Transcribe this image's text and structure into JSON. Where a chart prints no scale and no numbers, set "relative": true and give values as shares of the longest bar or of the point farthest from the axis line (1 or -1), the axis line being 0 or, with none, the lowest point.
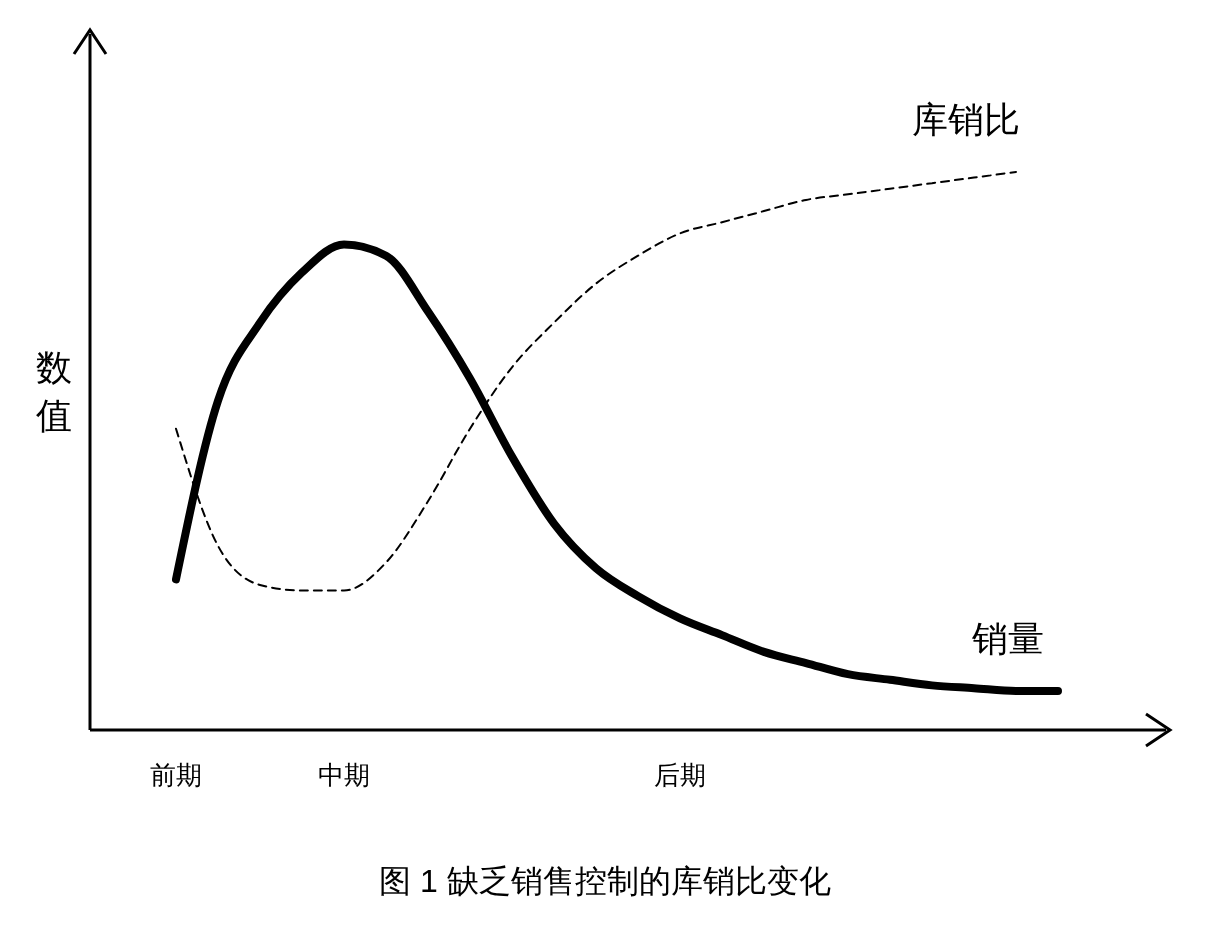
{
  "chart_data": {
    "type": "line",
    "relative": true,
    "title": "图 1 缺乏销售控制的库销比变化",
    "ylabel": "数值",
    "marker": "none",
    "categories": [
      "前期",
      null,
      null,
      null,
      "中期",
      null,
      null,
      null,
      null,
      null,
      null,
      null,
      "后期",
      null,
      null,
      null,
      null,
      null,
      null,
      null,
      null,
      null
    ],
    "series": [
      {
        "name": "库销比",
        "color": "#000000",
        "line_style": "dashed",
        "values": [
          0.54,
          0.33,
          0.26,
          0.25,
          0.25,
          0.3,
          0.41,
          0.54,
          0.65,
          0.73,
          0.8,
          0.85,
          0.89,
          0.91,
          0.93,
          0.95,
          0.96,
          0.97,
          0.98,
          0.99,
          1.0,
          null
        ]
      },
      {
        "name": "销量",
        "color": "#000000",
        "line_style": "solid",
        "values": [
          0.27,
          0.59,
          0.73,
          0.82,
          0.87,
          0.85,
          0.75,
          0.63,
          0.49,
          0.37,
          0.29,
          0.24,
          0.2,
          0.17,
          0.14,
          0.12,
          0.1,
          0.09,
          0.08,
          0.075,
          0.07,
          0.07
        ]
      }
    ]
  }
}
